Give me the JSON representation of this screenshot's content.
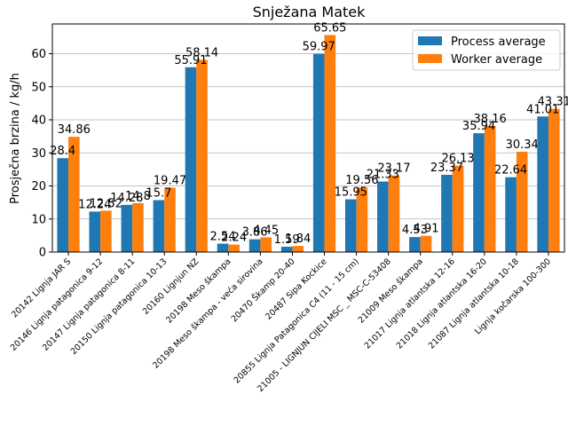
{
  "chart_data": {
    "type": "bar",
    "title": "Snježana Matek",
    "xlabel": "",
    "ylabel": "Prosječna brzina / kg/h",
    "ylim": [
      0,
      69
    ],
    "yticks": [
      0,
      10,
      20,
      30,
      40,
      50,
      60
    ],
    "grid": "horizontal",
    "legend_position": "top-right",
    "categories": [
      "20142 Lignja JAR S",
      "20146 Lignja patagonica 9-12",
      "20147 Lignja patagonica 8-11",
      "20150 Lignja patagonica 10-13",
      "20160 Lignjun NZ",
      "20198 Meso škampa",
      "20198 Meso škampa - veća sirovina",
      "20470 Škamp 20-40",
      "20487 Sipa Kockice",
      "20855 Lignja Patagonica C4 (11 - 15 cm)",
      "21005 - LIGNJUN CIJELI MSC _ MSC-C-53408",
      "21009 Meso škampa",
      "21017 Lignja atlantska 12-16",
      "21018 Lignja atlantska 16-20",
      "21087 Lignja atlantska 10-18",
      "Lignja kočarska 100-300"
    ],
    "series": [
      {
        "name": "Process average",
        "color": "#1f77b4",
        "values": [
          28.4,
          12.24,
          14.28,
          15.7,
          55.91,
          2.54,
          3.86,
          1.59,
          59.97,
          15.95,
          21.33,
          4.53,
          23.37,
          35.94,
          22.64,
          41.01
        ],
        "labels": [
          "28.4",
          "12.24",
          "14.28",
          "15.7",
          "55.91",
          "2.54",
          "3.86",
          "1.59",
          "59.97",
          "15.95",
          "21.33",
          "4.53",
          "23.37",
          "35.94",
          "22.64",
          "41.01"
        ]
      },
      {
        "name": "Worker average",
        "color": "#ff7f0e",
        "values": [
          34.86,
          12.52,
          14.8,
          19.47,
          58.14,
          2.24,
          4.45,
          1.84,
          65.65,
          19.56,
          23.17,
          4.91,
          26.13,
          38.16,
          30.34,
          43.31
        ],
        "labels": [
          "34.86",
          "12.52",
          "14.8",
          "19.47",
          "58.14",
          "2.24",
          "4.45",
          "1.84",
          "65.65",
          "19.56",
          "23.17",
          "4.91",
          "26.13",
          "38.16",
          "30.34",
          "43.31"
        ]
      }
    ]
  }
}
